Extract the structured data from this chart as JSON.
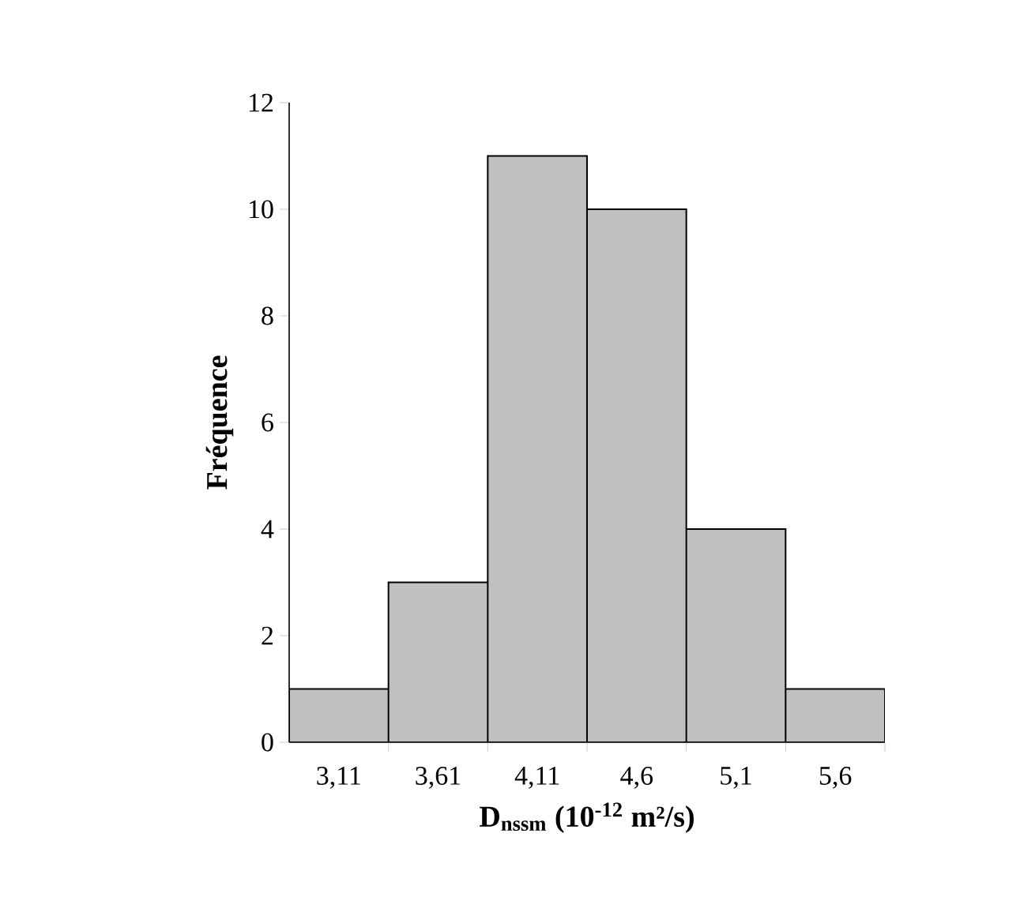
{
  "chart_data": {
    "type": "bar",
    "categories": [
      "3,11",
      "3,61",
      "4,11",
      "4,6",
      "5,1",
      "5,6"
    ],
    "values": [
      1,
      3,
      11,
      10,
      4,
      1
    ],
    "color": "#c0c0c0",
    "xlabel": "D$_{nssm}$ (10$^{-12}$ m²/s)",
    "ylabel": "Fréquence",
    "ylim": [
      0,
      12
    ],
    "yticks": [
      0,
      2,
      4,
      6,
      8,
      10,
      12
    ]
  }
}
